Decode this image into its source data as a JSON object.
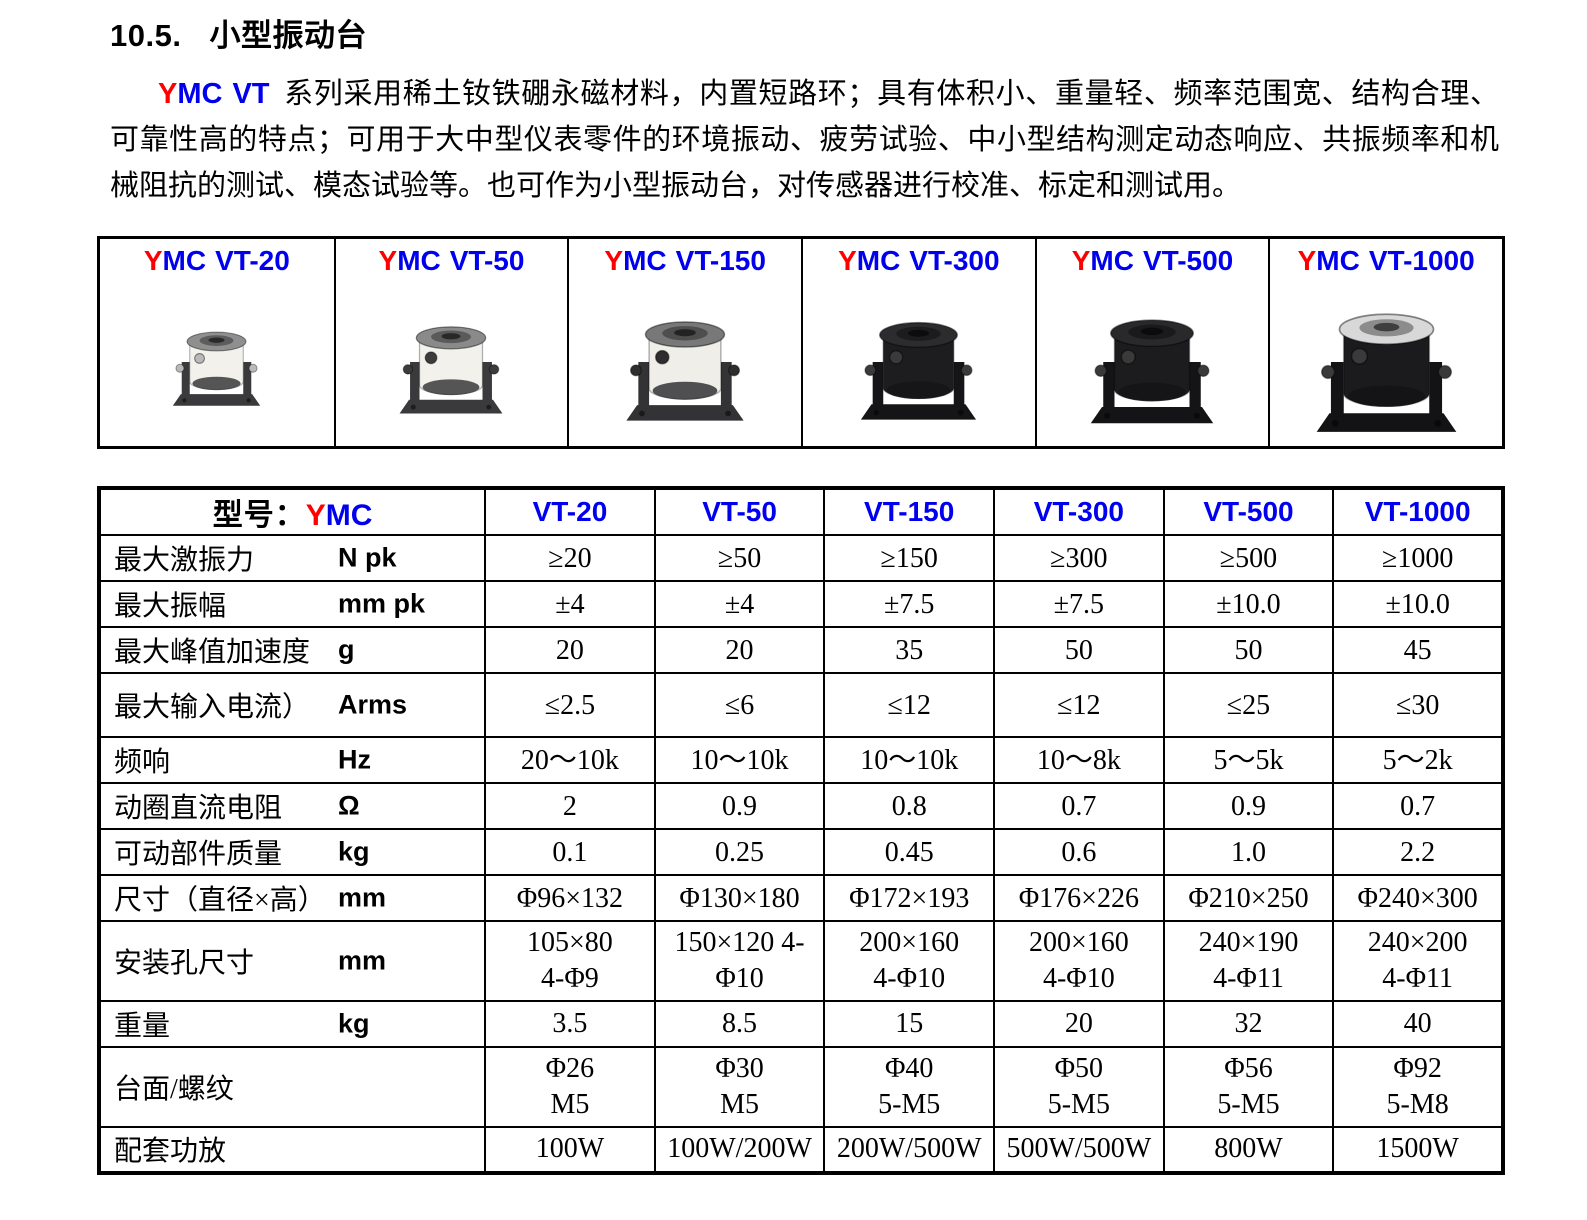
{
  "heading": {
    "number": "10.5.",
    "title": "小型振动台"
  },
  "brand": {
    "y": "Y",
    "mc": "MC",
    "vt": "VT"
  },
  "intro": {
    "text": "系列采用稀土钕铁硼永磁材料，内置短路环；具有体积小、重量轻、频率范围宽、结构合理、可靠性高的特点；可用于大中型仪表零件的环境振动、疲劳试验、中小型结构测定动态响应、共振频率和机械阻抗的测试、模态试验等。也可作为小型振动台，对传感器进行校准、标定和测试用。"
  },
  "colors": {
    "brand_red": "#FF0000",
    "brand_blue": "#0000EE",
    "table_border": "#000000"
  },
  "products": [
    {
      "model": "VT-20",
      "size": 100,
      "style": {
        "body": "#f2f1ec",
        "top": "#8f8f8f",
        "base": "#3a3a3c",
        "plug": "#b9b9b9"
      }
    },
    {
      "model": "VT-50",
      "size": 118,
      "style": {
        "body": "#f2f1ec",
        "top": "#8a8a8a",
        "base": "#3a3a3c",
        "plug": "#3c3c3c"
      }
    },
    {
      "model": "VT-150",
      "size": 134,
      "style": {
        "body": "#efeee8",
        "top": "#787878",
        "base": "#333336",
        "plug": "#2e2e2e"
      }
    },
    {
      "model": "VT-300",
      "size": 132,
      "style": {
        "body": "#1d1d1f",
        "top": "#2c2c2e",
        "base": "#151517",
        "plug": "#3a3a3a"
      }
    },
    {
      "model": "VT-500",
      "size": 140,
      "style": {
        "body": "#1c1c1e",
        "top": "#29292b",
        "base": "#141416",
        "plug": "#3a3a3a"
      }
    },
    {
      "model": "VT-1000",
      "size": 160,
      "style": {
        "body": "#1b1b1d",
        "top": "#d8d8d8",
        "base": "#131315",
        "plug": "#3a3a3a"
      }
    }
  ],
  "spec_table": {
    "corner_label": "型号：",
    "models": [
      "VT-20",
      "VT-50",
      "VT-150",
      "VT-300",
      "VT-500",
      "VT-1000"
    ],
    "rows": [
      {
        "label": "最大激振力",
        "unit": "N pk",
        "values": [
          "≥20",
          "≥50",
          "≥150",
          "≥300",
          "≥500",
          "≥1000"
        ]
      },
      {
        "label": "最大振幅",
        "unit": "mm pk",
        "values": [
          "±4",
          "±4",
          "±7.5",
          "±7.5",
          "±10.0",
          "±10.0"
        ]
      },
      {
        "label": "最大峰值加速度",
        "unit": "g",
        "values": [
          "20",
          "20",
          "35",
          "50",
          "50",
          "45"
        ]
      },
      {
        "label": "最大输入电流）",
        "unit": "Arms",
        "values": [
          "≤2.5",
          "≤6",
          "≤12",
          "≤12",
          "≤25",
          "≤30"
        ]
      },
      {
        "label": "频响",
        "unit": "Hz",
        "values": [
          "20～10k",
          "10～10k",
          "10～10k",
          "10～8k",
          "5～5k",
          "5～2k"
        ]
      },
      {
        "label": "动圈直流电阻",
        "unit": "Ω",
        "values": [
          "2",
          "0.9",
          "0.8",
          "0.7",
          "0.9",
          "0.7"
        ]
      },
      {
        "label": "可动部件质量",
        "unit": "kg",
        "values": [
          "0.1",
          "0.25",
          "0.45",
          "0.6",
          "1.0",
          "2.2"
        ]
      },
      {
        "label": "尺寸（直径×高）",
        "unit": "mm",
        "values": [
          "Φ96×132",
          "Φ130×180",
          "Φ172×193",
          "Φ176×226",
          "Φ210×250",
          "Φ240×300"
        ]
      },
      {
        "label": "安装孔尺寸",
        "unit": "mm",
        "values": [
          "105×80\n4-Φ9",
          "150×120 4-\nΦ10",
          "200×160\n4-Φ10",
          "200×160\n4-Φ10",
          "240×190\n4-Φ11",
          "240×200\n4-Φ11"
        ]
      },
      {
        "label": "重量",
        "unit": "kg",
        "values": [
          "3.5",
          "8.5",
          "15",
          "20",
          "32",
          "40"
        ]
      },
      {
        "label": "台面/螺纹",
        "unit": "",
        "values": [
          "Φ26\nM5",
          "Φ30\nM5",
          "Φ40\n5-M5",
          "Φ50\n5-M5",
          "Φ56\n5-M5",
          "Φ92\n5-M8"
        ]
      },
      {
        "label": "配套功放",
        "unit": "",
        "values": [
          "100W",
          "100W/200W",
          "200W/500W",
          "500W/500W",
          "800W",
          "1500W"
        ]
      }
    ]
  }
}
